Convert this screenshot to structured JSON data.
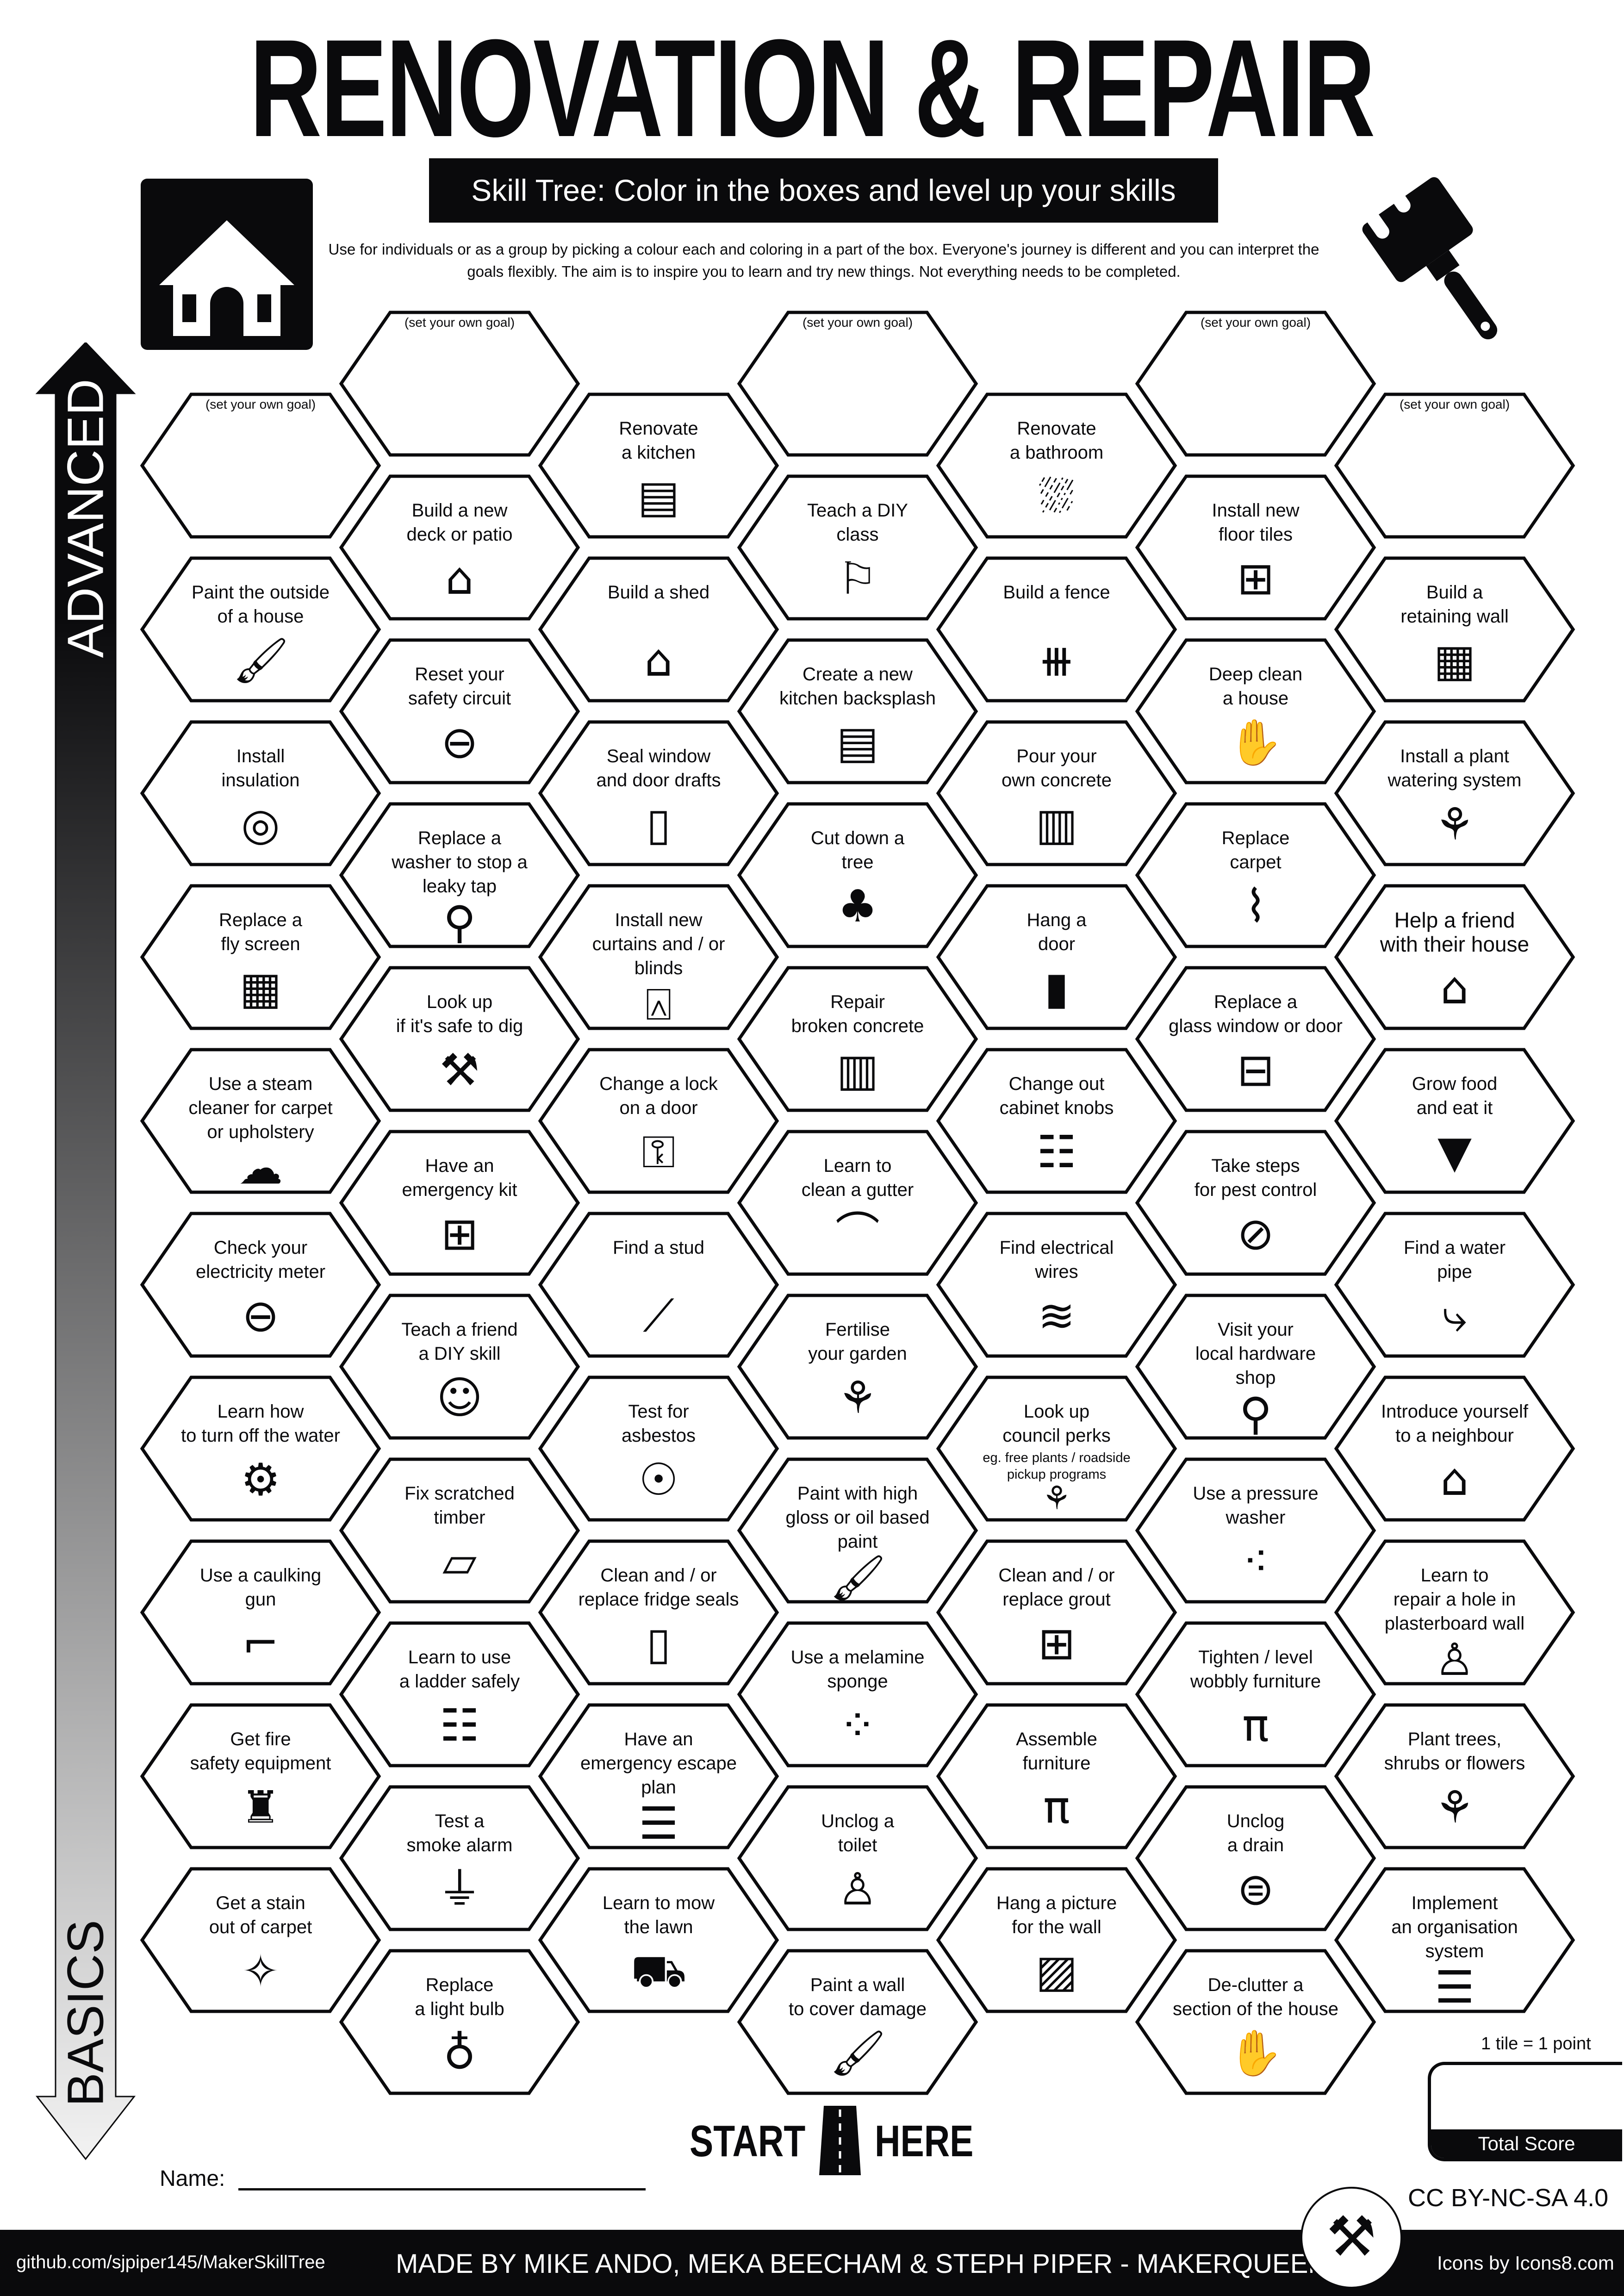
{
  "header": {
    "title": "RENOVATION & REPAIR",
    "subtitle": "Skill Tree:  Color in the boxes and level up your skills",
    "description": "Use for individuals or as a group by picking a colour each and coloring in a part of the box.  Everyone's journey is different and you can interpret the goals flexibly.  The aim is to inspire you to learn and try new things. Not everything needs to be completed.",
    "left_icon": "house-icon",
    "right_icon": "paint-brush-icon"
  },
  "axis": {
    "top_label": "ADVANCED",
    "bottom_label": "BASICS"
  },
  "columns": [
    [
      {
        "goal": true,
        "label": "(set your own goal)"
      },
      {
        "label": "Paint the outside\nof a house",
        "icon": "paint-brush"
      },
      {
        "label": "Install\ninsulation",
        "icon": "insulation-roll"
      },
      {
        "label": "Replace a\nfly screen",
        "icon": "grid"
      },
      {
        "label": "Use a steam\ncleaner for carpet\nor upholstery",
        "icon": "steam"
      },
      {
        "label": "Check your\nelectricity meter",
        "icon": "gauge"
      },
      {
        "label": "Learn how\nto turn off the water",
        "icon": "water-valve"
      },
      {
        "label": "Use a caulking\ngun",
        "icon": "caulk-gun"
      },
      {
        "label": "Get fire\nsafety equipment",
        "icon": "fire-extinguisher"
      },
      {
        "label": "Get a stain\nout of carpet",
        "icon": "sparkle"
      }
    ],
    [
      {
        "goal": true,
        "label": "(set your own goal)"
      },
      {
        "label": "Build a new\ndeck or patio",
        "icon": "deck"
      },
      {
        "label": "Reset your\nsafety circuit",
        "icon": "gauge"
      },
      {
        "label": "Replace a\nwasher to stop a\nleaky tap",
        "icon": "tap"
      },
      {
        "label": "Look up\nif it's safe to dig",
        "icon": "shovel"
      },
      {
        "label": "Have an\nemergency kit",
        "icon": "first-aid"
      },
      {
        "label": "Teach a friend\na DIY skill",
        "icon": "people"
      },
      {
        "label": "Fix scratched\ntimber",
        "icon": "timber"
      },
      {
        "label": "Learn to use\na ladder safely",
        "icon": "ladder"
      },
      {
        "label": "Test a\nsmoke alarm",
        "icon": "smoke-alarm"
      },
      {
        "label": "Replace\na light bulb",
        "icon": "light-bulb"
      }
    ],
    [
      {
        "label": "Renovate\na kitchen",
        "icon": "kitchen"
      },
      {
        "label": "Build a shed",
        "icon": "shed"
      },
      {
        "label": "Seal window\nand door drafts",
        "icon": "door-draft"
      },
      {
        "label": "Install new\ncurtains and / or\nblinds",
        "icon": "curtains"
      },
      {
        "label": "Change a lock\non a door",
        "icon": "lock"
      },
      {
        "label": "Find a stud",
        "icon": "nail"
      },
      {
        "label": "Test for\nasbestos",
        "icon": "mask"
      },
      {
        "label": "Clean and / or\nreplace fridge seals",
        "icon": "fridge"
      },
      {
        "label": "Have an\nemergency escape\nplan",
        "icon": "checklist"
      },
      {
        "label": "Learn to mow\nthe lawn",
        "icon": "lawn-mower"
      }
    ],
    [
      {
        "goal": true,
        "label": "(set your own goal)"
      },
      {
        "label": "Teach a DIY\nclass",
        "icon": "teacher"
      },
      {
        "label": "Create a new\nkitchen backsplash",
        "icon": "kitchen"
      },
      {
        "label": "Cut down a\ntree",
        "icon": "tree-stump"
      },
      {
        "label": "Repair\nbroken concrete",
        "icon": "concrete"
      },
      {
        "label": "Learn to\nclean a gutter",
        "icon": "gutter"
      },
      {
        "label": "Fertilise\nyour garden",
        "icon": "sprout"
      },
      {
        "label": "Paint with high\ngloss or oil based\npaint",
        "icon": "paint-brush"
      },
      {
        "label": "Use a melamine\nsponge",
        "icon": "sponge"
      },
      {
        "label": "Unclog a\ntoilet",
        "icon": "toilet"
      },
      {
        "label": "Paint a wall\nto cover damage",
        "icon": "paint-brush"
      }
    ],
    [
      {
        "label": "Renovate\na bathroom",
        "icon": "bathtub"
      },
      {
        "label": "Build a fence",
        "icon": "fence"
      },
      {
        "label": "Pour your\nown concrete",
        "icon": "concrete"
      },
      {
        "label": "Hang a\ndoor",
        "icon": "door"
      },
      {
        "label": "Change out\ncabinet knobs",
        "icon": "cabinet"
      },
      {
        "label": "Find electrical\nwires",
        "icon": "wires"
      },
      {
        "label": "Look up\ncouncil perks",
        "note": "eg. free plants / roadside\npickup programs",
        "icon": "sprout"
      },
      {
        "label": "Clean and / or\nreplace grout",
        "icon": "tiles"
      },
      {
        "label": "Assemble\nfurniture",
        "icon": "table"
      },
      {
        "label": "Hang a picture\nfor the wall",
        "icon": "picture"
      }
    ],
    [
      {
        "goal": true,
        "label": "(set your own goal)"
      },
      {
        "label": "Install new\nfloor tiles",
        "icon": "tiles"
      },
      {
        "label": "Deep clean\na house",
        "icon": "clean-hands"
      },
      {
        "label": "Replace\ncarpet",
        "icon": "carpet"
      },
      {
        "label": "Replace a\nglass window or door",
        "icon": "window"
      },
      {
        "label": "Take steps\nfor pest control",
        "icon": "no-bug"
      },
      {
        "label": "Visit your\nlocal hardware\nshop",
        "icon": "location-pin"
      },
      {
        "label": "Use a pressure\nwasher",
        "icon": "sprayer"
      },
      {
        "label": "Tighten / level\nwobbly furniture",
        "icon": "table"
      },
      {
        "label": "Unclog\na drain",
        "icon": "drain"
      },
      {
        "label": "De-clutter a\nsection of the house",
        "icon": "clean-hands"
      }
    ],
    [
      {
        "goal": true,
        "label": "(set your own goal)"
      },
      {
        "label": "Build a\nretaining wall",
        "icon": "brick-wall"
      },
      {
        "label": "Install a plant\nwatering system",
        "icon": "sprout"
      },
      {
        "label": "Help a friend\nwith their house",
        "icon": "house-person",
        "big": true
      },
      {
        "label": "Grow food\nand eat it",
        "icon": "carrot"
      },
      {
        "label": "Find a water\npipe",
        "icon": "pipe"
      },
      {
        "label": "Introduce yourself\nto a neighbour",
        "icon": "house-person"
      },
      {
        "label": "Learn to\nrepair a hole in\nplasterboard wall",
        "icon": "person-painting"
      },
      {
        "label": "Plant trees,\nshrubs or flowers",
        "icon": "sprout"
      },
      {
        "label": "Implement\nan organisation\nsystem",
        "icon": "shelves"
      }
    ]
  ],
  "start": {
    "left": "START",
    "right": "HERE"
  },
  "name_label": "Name:",
  "score": {
    "note": "1 tile = 1 point",
    "label": "Total Score"
  },
  "license": "CC BY-NC-SA 4.0",
  "footer": {
    "github": "github.com/sjpiper145/MakerSkillTree",
    "credits": "MADE BY MIKE ANDO, MEKA BEECHAM & STEPH PIPER  -  MAKERQUEEN AU",
    "icons_credit": "Icons by Icons8.com"
  },
  "colors": {
    "ink": "#0a0a0c",
    "background": "#ffffff",
    "arrow_gradient_end": "#f2f2f2"
  }
}
